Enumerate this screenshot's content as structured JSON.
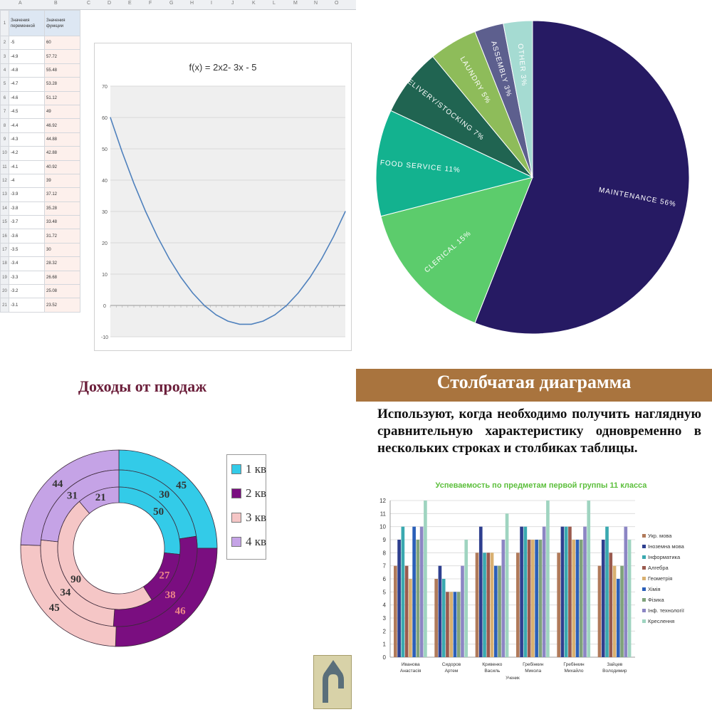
{
  "spreadsheet": {
    "column_letters": [
      "A",
      "B",
      "C",
      "D",
      "E",
      "F",
      "G",
      "H",
      "I",
      "J",
      "K",
      "L",
      "M",
      "N",
      "O"
    ],
    "header_cells": [
      "Значения переменной",
      "Значения функции"
    ],
    "rows": [
      [
        "2",
        "-5",
        "60"
      ],
      [
        "3",
        "-4.9",
        "57.72"
      ],
      [
        "4",
        "-4.8",
        "55.48"
      ],
      [
        "5",
        "-4.7",
        "53.28"
      ],
      [
        "6",
        "-4.6",
        "51.12"
      ],
      [
        "7",
        "-4.5",
        "49"
      ],
      [
        "8",
        "-4.4",
        "46.92"
      ],
      [
        "9",
        "-4.3",
        "44.88"
      ],
      [
        "10",
        "-4.2",
        "42.88"
      ],
      [
        "11",
        "-4.1",
        "40.92"
      ],
      [
        "12",
        "-4",
        "39"
      ],
      [
        "13",
        "-3.9",
        "37.12"
      ],
      [
        "14",
        "-3.8",
        "35.28"
      ],
      [
        "15",
        "-3.7",
        "33.48"
      ],
      [
        "16",
        "-3.6",
        "31.72"
      ],
      [
        "17",
        "-3.5",
        "30"
      ],
      [
        "18",
        "-3.4",
        "28.32"
      ],
      [
        "19",
        "-3.3",
        "26.68"
      ],
      [
        "20",
        "-3.2",
        "25.08"
      ],
      [
        "21",
        "-3.1",
        "23.52"
      ]
    ]
  },
  "chart_data": [
    {
      "type": "line",
      "title": "f(x) = 2x2- 3x - 5",
      "xlabel": "",
      "ylabel": "",
      "ylim": [
        -10,
        70
      ],
      "yticks": [
        -10,
        0,
        10,
        20,
        30,
        40,
        50,
        60,
        70
      ],
      "x": [
        -5,
        -4.5,
        -4,
        -3.5,
        -3,
        -2.5,
        -2,
        -1.5,
        -1,
        -0.5,
        0,
        0.5,
        1,
        1.5,
        2,
        2.5,
        3,
        3.5,
        4,
        4.5,
        5
      ],
      "series": [
        {
          "values": [
            60,
            49,
            39,
            30,
            22,
            15,
            9,
            4,
            0,
            -3,
            -5,
            -6,
            -6,
            -5,
            -3,
            0,
            4,
            9,
            15,
            22,
            30
          ]
        }
      ],
      "grid": true,
      "color": "#4f81bd"
    },
    {
      "type": "pie",
      "labels": [
        "MAINTENANCE",
        "CLERICAL",
        "FOOD SERVICE",
        "DELIVERY/STOCKING",
        "LAUNDRY",
        "ASSEMBLY",
        "OTHER"
      ],
      "values": [
        56,
        15,
        11,
        7,
        5,
        3,
        3
      ],
      "value_labels": [
        "56%",
        "15%",
        "11%",
        "7%",
        "5%",
        "3%",
        "3%"
      ],
      "colors": [
        "#261a63",
        "#5ccc6c",
        "#13b28f",
        "#206451",
        "#8ebc5a",
        "#5d5f8e",
        "#a5dbd2"
      ]
    },
    {
      "type": "pie",
      "subtype": "donut",
      "title": "Доходы от продаж",
      "categories": [
        "1 кв",
        "2 кв",
        "3 кв",
        "4 кв"
      ],
      "series": [
        {
          "values": [
            45,
            46,
            45,
            44
          ]
        },
        {
          "values": [
            30,
            38,
            34,
            31
          ]
        },
        {
          "values": [
            50,
            27,
            90,
            21
          ]
        }
      ],
      "colors": [
        "#33cbe8",
        "#7a0e80",
        "#f5c6c6",
        "#c5a3e6"
      ]
    },
    {
      "type": "bar",
      "title": "Успеваемость по предметам первой группы 11 класса",
      "xlabel": "Ученик",
      "ylabel": "",
      "ylim": [
        0,
        12
      ],
      "yticks": [
        0,
        1,
        2,
        3,
        4,
        5,
        6,
        7,
        8,
        9,
        10,
        11,
        12
      ],
      "categories": [
        "Иванова Анастасія",
        "Сидоров Артем",
        "Кривенко Василь",
        "Гребінкин Микола",
        "Гребінкин Михайло",
        "Зайцев Володимир"
      ],
      "series": [
        {
          "name": "Укр. мова",
          "color": "#b07a5a",
          "values": [
            7,
            6,
            8,
            8,
            8,
            7
          ]
        },
        {
          "name": "Іноземна мова",
          "color": "#2e3f8f",
          "values": [
            9,
            7,
            10,
            10,
            10,
            9
          ]
        },
        {
          "name": "Інформатика",
          "color": "#3aa9b0",
          "values": [
            10,
            6,
            8,
            10,
            10,
            10
          ]
        },
        {
          "name": "Алгебра",
          "color": "#9a5a4e",
          "values": [
            7,
            5,
            8,
            9,
            10,
            8
          ]
        },
        {
          "name": "Геометрія",
          "color": "#d9b070",
          "values": [
            6,
            5,
            8,
            9,
            9,
            7
          ]
        },
        {
          "name": "Хімія",
          "color": "#2b5fb8",
          "values": [
            10,
            5,
            7,
            9,
            9,
            6
          ]
        },
        {
          "name": "Фізика",
          "color": "#7fa27b",
          "values": [
            9,
            5,
            7,
            9,
            9,
            7
          ]
        },
        {
          "name": "Інф. технології",
          "color": "#8c86c4",
          "values": [
            10,
            7,
            9,
            10,
            10,
            10
          ]
        },
        {
          "name": "Креслення",
          "color": "#9fd4c0",
          "values": [
            12,
            9,
            11,
            12,
            12,
            9
          ]
        }
      ]
    }
  ],
  "donut_slide": {
    "legend": [
      "1 кв",
      "2 кв",
      "3 кв",
      "4 кв"
    ],
    "nav_button_label": "↺"
  },
  "bar_slide": {
    "banner_title": "Столбчатая диаграмма",
    "body_text": "Используют, когда необходимо получить наглядную сравнительную характеристику одновременно в нескольких строках и столбиках таблицы.",
    "banner_color": "#a9743e"
  }
}
